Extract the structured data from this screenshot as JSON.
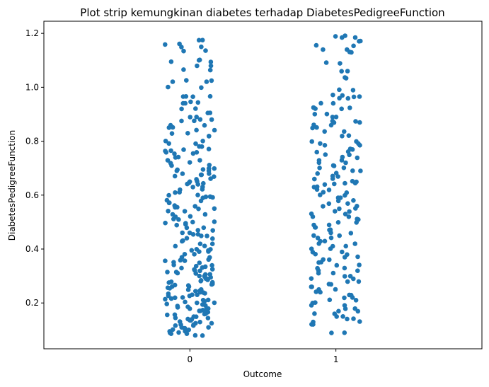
{
  "chart_data": {
    "type": "scatter",
    "subtype": "strip",
    "title": "Plot strip kemungkinan diabetes terhadap DiabetesPedigreeFunction",
    "xlabel": "Outcome",
    "ylabel": "DiabetesPedigreeFunction",
    "categories": [
      "0",
      "1"
    ],
    "ylim": [
      0.03,
      1.245
    ],
    "yticks": [
      0.2,
      0.4,
      0.6,
      0.8,
      1.0,
      1.2
    ],
    "ytick_labels": [
      "0.2",
      "0.4",
      "0.6",
      "0.8",
      "1.0",
      "1.2"
    ],
    "grid": false,
    "legend": "none",
    "point_color": "#1f77b4",
    "series": [
      {
        "category": "0",
        "values": [
          1.16,
          1.15,
          1.175,
          1.135,
          1.1,
          1.095,
          1.08,
          1.065,
          1.02,
          1.025,
          1.0,
          0.965,
          0.965,
          0.945,
          0.94,
          0.92,
          0.905,
          0.89,
          0.88,
          0.875,
          0.86,
          0.85,
          0.84,
          0.83,
          0.82,
          0.8,
          0.79,
          0.78,
          0.77,
          0.765,
          0.76,
          0.755,
          0.74,
          0.73,
          0.72,
          0.71,
          0.7,
          0.695,
          0.69,
          0.68,
          0.675,
          0.67,
          0.66,
          0.65,
          0.645,
          0.64,
          0.63,
          0.62,
          0.61,
          0.6,
          0.595,
          0.59,
          0.58,
          0.57,
          0.56,
          0.555,
          0.55,
          0.54,
          0.53,
          0.52,
          0.51,
          0.5,
          0.495,
          0.49,
          0.48,
          0.47,
          0.46,
          0.455,
          0.45,
          0.44,
          0.43,
          0.42,
          0.41,
          0.4,
          0.395,
          0.39,
          0.38,
          0.37,
          0.36,
          0.355,
          0.35,
          0.34,
          0.335,
          0.33,
          0.325,
          0.32,
          0.315,
          0.31,
          0.305,
          0.3,
          0.295,
          0.29,
          0.285,
          0.28,
          0.275,
          0.27,
          0.265,
          0.26,
          0.255,
          0.25,
          0.245,
          0.24,
          0.235,
          0.23,
          0.225,
          0.22,
          0.215,
          0.21,
          0.205,
          0.2,
          0.195,
          0.19,
          0.185,
          0.18,
          0.175,
          0.17,
          0.165,
          0.16,
          0.155,
          0.15,
          0.145,
          0.14,
          0.135,
          0.13,
          0.125,
          0.12,
          0.115,
          0.11,
          0.105,
          0.1,
          0.095,
          0.09,
          0.085,
          0.08
        ]
      },
      {
        "category": "1",
        "values": [
          1.19,
          1.185,
          1.17,
          1.155,
          1.14,
          1.13,
          1.09,
          1.06,
          1.035,
          0.99,
          0.97,
          0.965,
          0.96,
          0.94,
          0.925,
          0.92,
          0.9,
          0.89,
          0.875,
          0.87,
          0.86,
          0.85,
          0.835,
          0.82,
          0.8,
          0.79,
          0.785,
          0.77,
          0.76,
          0.75,
          0.74,
          0.73,
          0.72,
          0.71,
          0.7,
          0.69,
          0.68,
          0.67,
          0.66,
          0.65,
          0.645,
          0.64,
          0.63,
          0.62,
          0.61,
          0.6,
          0.59,
          0.58,
          0.57,
          0.56,
          0.55,
          0.54,
          0.53,
          0.52,
          0.51,
          0.5,
          0.49,
          0.48,
          0.47,
          0.46,
          0.45,
          0.44,
          0.43,
          0.42,
          0.41,
          0.4,
          0.39,
          0.38,
          0.37,
          0.36,
          0.35,
          0.34,
          0.33,
          0.32,
          0.31,
          0.3,
          0.29,
          0.28,
          0.27,
          0.26,
          0.25,
          0.24,
          0.23,
          0.22,
          0.21,
          0.2,
          0.19,
          0.18,
          0.17,
          0.16,
          0.15,
          0.14,
          0.13,
          0.12,
          0.09
        ]
      }
    ]
  }
}
